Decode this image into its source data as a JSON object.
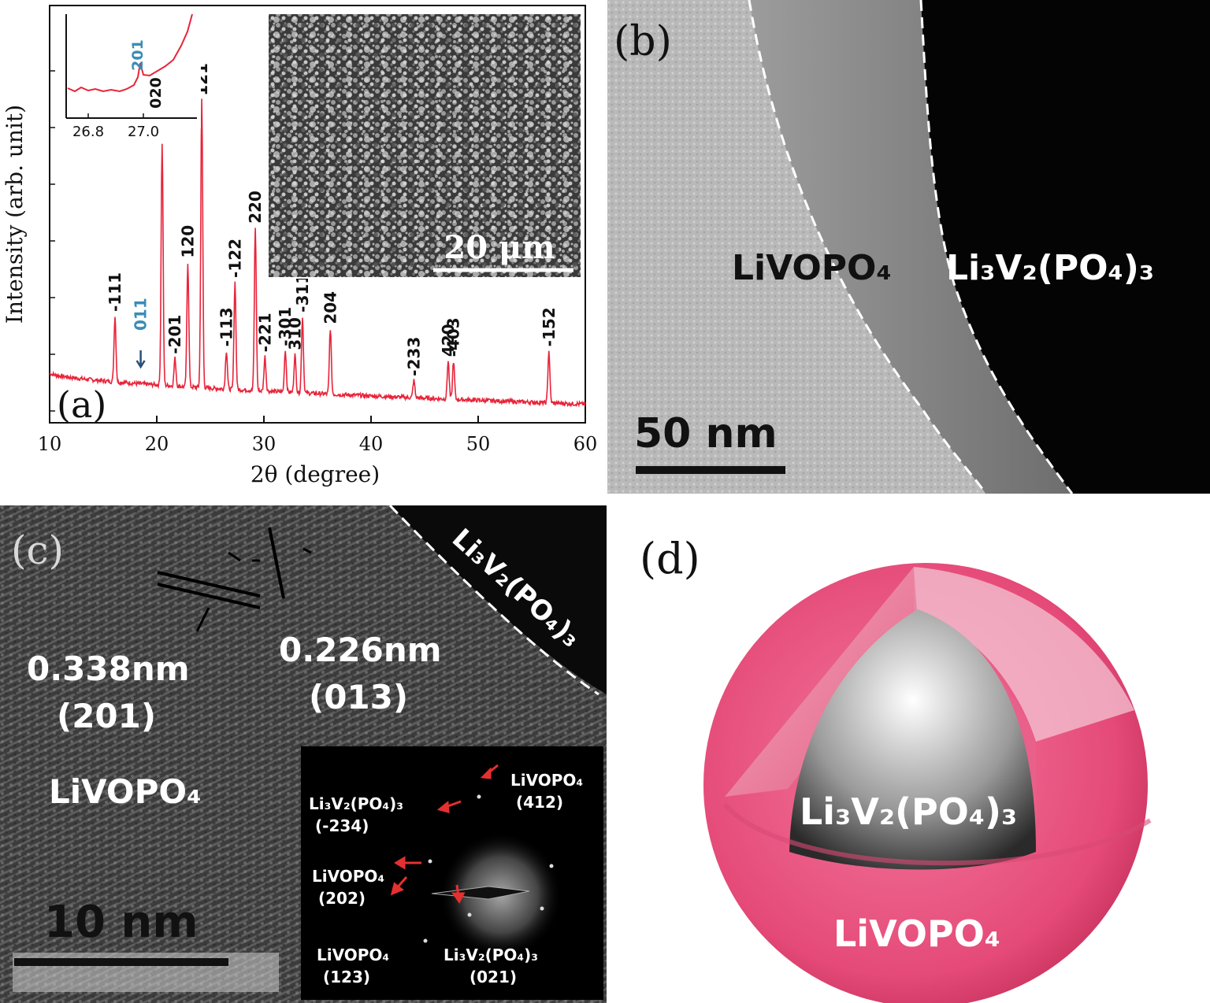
{
  "chart_data": {
    "type": "line",
    "panel_label": "(a)",
    "xlabel": "2θ (degree)",
    "ylabel": "Intensity (arb. unit)",
    "xlim": [
      10,
      60
    ],
    "x_ticks": [
      "10",
      "20",
      "30",
      "40",
      "50",
      "60"
    ],
    "color": "#e8243a",
    "peaks": [
      {
        "x": 16.1,
        "label": "-111",
        "color": "#111111"
      },
      {
        "x": 18.5,
        "label": "011",
        "color": "#3a8db5"
      },
      {
        "x": 21.7,
        "label": "-201",
        "color": "#111111"
      },
      {
        "x": 22.9,
        "label": "120",
        "color": "#111111"
      },
      {
        "x": 20.5,
        "label": "",
        "color": "#111111"
      },
      {
        "x": 24.2,
        "label": "121",
        "color": "#111111"
      },
      {
        "x": 26.5,
        "label": "-113",
        "color": "#111111"
      },
      {
        "x": 27.3,
        "label": "-122",
        "color": "#111111"
      },
      {
        "x": 29.2,
        "label": "220",
        "color": "#111111"
      },
      {
        "x": 30.1,
        "label": "-221",
        "color": "#111111"
      },
      {
        "x": 32.0,
        "label": "-301",
        "color": "#111111"
      },
      {
        "x": 32.9,
        "label": "310",
        "color": "#111111"
      },
      {
        "x": 33.6,
        "label": "-311",
        "color": "#111111"
      },
      {
        "x": 36.2,
        "label": "204",
        "color": "#111111"
      },
      {
        "x": 44.0,
        "label": "-233",
        "color": "#111111"
      },
      {
        "x": 47.2,
        "label": "420",
        "color": "#111111"
      },
      {
        "x": 47.7,
        "label": "-403",
        "color": "#111111"
      },
      {
        "x": 56.6,
        "label": "-152",
        "color": "#111111"
      }
    ],
    "inset": {
      "x_ticks": [
        "26.8",
        "27.0"
      ],
      "xlim": [
        26.7,
        27.15
      ],
      "labels": [
        {
          "text": "201",
          "color": "#3a8db5"
        },
        {
          "text": "020",
          "color": "#111111"
        }
      ]
    },
    "sem_scale": "20 μm"
  },
  "panel_b": {
    "label": "(b)",
    "region_left": "LiVOPO₄",
    "region_right": "Li₃V₂(PO₄)₃",
    "scale": "50 nm"
  },
  "panel_c": {
    "label": "(c)",
    "top_right": "Li₃V₂(PO₄)₃",
    "d1": "0.338nm",
    "d1_plane": "(201)",
    "d2": "0.226nm",
    "d2_plane": "(013)",
    "phase": "LiVOPO₄",
    "scale": "10 nm",
    "saed": [
      {
        "name": "LiVOPO₄",
        "plane": "(412)"
      },
      {
        "name": "Li₃V₂(PO₄)₃",
        "plane": "(-234)"
      },
      {
        "name": "LiVOPO₄",
        "plane": "(202)"
      },
      {
        "name": "LiVOPO₄",
        "plane": "(123)"
      },
      {
        "name": "Li₃V₂(PO₄)₃",
        "plane": "(021)"
      }
    ]
  },
  "panel_d": {
    "label": "(d)",
    "core": "Li₃V₂(PO₄)₃",
    "shell": "LiVOPO₄",
    "shell_color": "#e54a78"
  }
}
